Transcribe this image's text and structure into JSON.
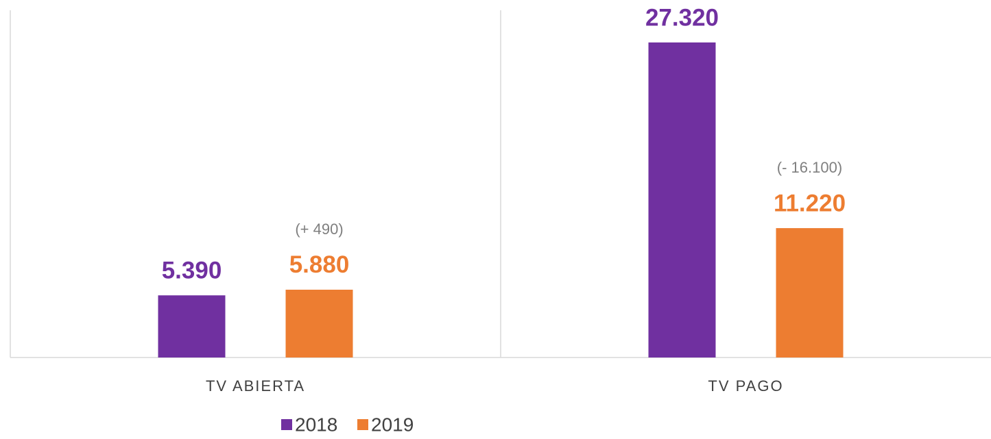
{
  "chart_data": {
    "type": "bar",
    "categories": [
      "TV ABIERTA",
      "TV PAGO"
    ],
    "series": [
      {
        "name": "2018",
        "color": "#7030a0",
        "values": [
          5390,
          27320
        ],
        "value_labels": [
          "5.390",
          "27.320"
        ]
      },
      {
        "name": "2019",
        "color": "#ed7d31",
        "values": [
          5880,
          11220
        ],
        "value_labels": [
          "5.880",
          "11.220"
        ]
      }
    ],
    "annotations": [
      "(+ 490)",
      "(- 16.100)"
    ]
  }
}
